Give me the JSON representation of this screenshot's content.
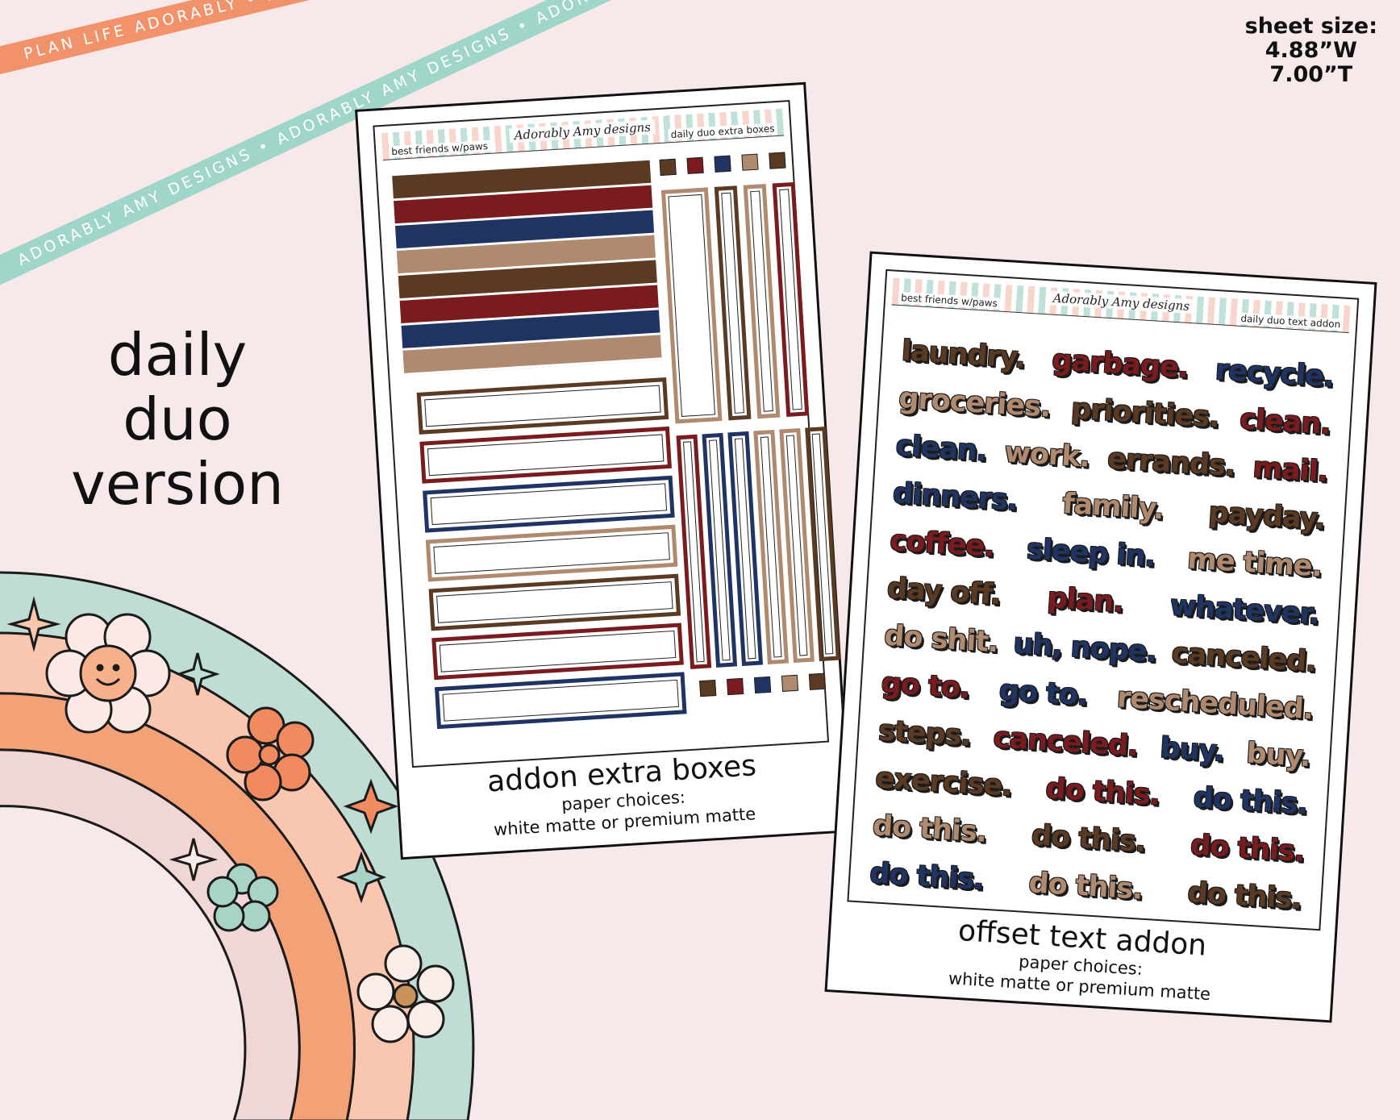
{
  "ribbons": {
    "orange_text": "PLAN LIFE ADORABLY • PLAN LIFE ADORABLY • PLAN LIFE ADORABLY •",
    "teal_text": "ADORABLY AMY DESIGNS • ADORABLY AMY DESIGNS • ADORABLY AMY DESIGNS •"
  },
  "sheet_size": {
    "label": "sheet size:",
    "width": "4.88”W",
    "height": "7.00”T"
  },
  "version": {
    "line1": "daily",
    "line2": "duo",
    "line3": "version"
  },
  "colors": {
    "brown": "#5a3a22",
    "red": "#7a1c1f",
    "navy": "#1f3462",
    "tan": "#b08a6e",
    "background": "#f7e9ea"
  },
  "sheet_a": {
    "header_left": "best friends w/paws",
    "header_logo": "Adorably Amy designs",
    "header_right": "daily duo extra boxes",
    "title": "addon extra boxes",
    "sub1": "paper choices:",
    "sub2": "white matte or premium matte"
  },
  "sheet_b": {
    "header_left": "best friends w/paws",
    "header_logo": "Adorably Amy designs",
    "header_right": "daily duo text addon",
    "title": "offset text addon",
    "sub1": "paper choices:",
    "sub2": "white matte or premium matte",
    "rows": [
      [
        {
          "t": "laundry.",
          "c": "brown"
        },
        {
          "t": "garbage.",
          "c": "red"
        },
        {
          "t": "recycle.",
          "c": "navy"
        }
      ],
      [
        {
          "t": "groceries.",
          "c": "tan"
        },
        {
          "t": "priorities.",
          "c": "brown"
        },
        {
          "t": "clean.",
          "c": "red"
        }
      ],
      [
        {
          "t": "clean.",
          "c": "navy"
        },
        {
          "t": "work.",
          "c": "tan"
        },
        {
          "t": "errands.",
          "c": "brown"
        },
        {
          "t": "mail.",
          "c": "red"
        }
      ],
      [
        {
          "t": "dinners.",
          "c": "navy"
        },
        {
          "t": "family.",
          "c": "tan"
        },
        {
          "t": "payday.",
          "c": "brown"
        }
      ],
      [
        {
          "t": "coffee.",
          "c": "red"
        },
        {
          "t": "sleep in.",
          "c": "navy"
        },
        {
          "t": "me time.",
          "c": "tan"
        }
      ],
      [
        {
          "t": "day off.",
          "c": "brown"
        },
        {
          "t": "plan.",
          "c": "red"
        },
        {
          "t": "whatever.",
          "c": "navy"
        }
      ],
      [
        {
          "t": "do shit.",
          "c": "tan"
        },
        {
          "t": "uh, nope.",
          "c": "navy"
        },
        {
          "t": "canceled.",
          "c": "brown"
        }
      ],
      [
        {
          "t": "go to.",
          "c": "red"
        },
        {
          "t": "go to.",
          "c": "navy"
        },
        {
          "t": "rescheduled.",
          "c": "tan"
        }
      ],
      [
        {
          "t": "steps.",
          "c": "brown"
        },
        {
          "t": "canceled.",
          "c": "red"
        },
        {
          "t": "buy.",
          "c": "navy"
        },
        {
          "t": "buy.",
          "c": "tan"
        }
      ],
      [
        {
          "t": "exercise.",
          "c": "brown"
        },
        {
          "t": "do this.",
          "c": "red"
        },
        {
          "t": "do this.",
          "c": "navy"
        }
      ],
      [
        {
          "t": "do this.",
          "c": "tan"
        },
        {
          "t": "do this.",
          "c": "brown"
        },
        {
          "t": "do this.",
          "c": "red"
        }
      ],
      [
        {
          "t": "do this.",
          "c": "navy"
        },
        {
          "t": "do this.",
          "c": "tan"
        },
        {
          "t": "do this.",
          "c": "brown"
        }
      ]
    ]
  }
}
